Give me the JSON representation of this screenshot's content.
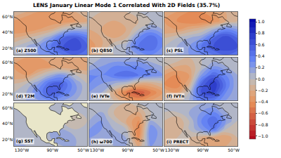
{
  "chart_data": {
    "type": "contour",
    "title": "LENS January Linear Mode 1 Correlated With 2D Fields (35.7%)",
    "x": [
      -140,
      -124,
      -108,
      -92,
      -76,
      -60,
      -45
    ],
    "y": [
      12,
      22,
      33,
      44,
      55,
      66
    ],
    "xlim": [
      -140,
      -45
    ],
    "ylim": [
      12,
      66
    ],
    "xticks": [
      {
        "value": -130,
        "label": "130°W"
      },
      {
        "value": -90,
        "label": "90°W"
      },
      {
        "value": -50,
        "label": "50°W"
      }
    ],
    "yticks": [
      {
        "value": 20,
        "label": "20°N"
      },
      {
        "value": 40,
        "label": "40°N"
      },
      {
        "value": 60,
        "label": "60°N"
      }
    ],
    "colorbar": {
      "range": [
        -1,
        1
      ],
      "ticks": [
        {
          "value": -1,
          "label": "−1.0"
        },
        {
          "value": -0.8,
          "label": "−0.8"
        },
        {
          "value": -0.6,
          "label": "−0.6"
        },
        {
          "value": -0.4,
          "label": "−0.4"
        },
        {
          "value": -0.2,
          "label": "−0.2"
        },
        {
          "value": 0,
          "label": "0.0"
        },
        {
          "value": 0.2,
          "label": "0.2"
        },
        {
          "value": 0.4,
          "label": "0.4"
        },
        {
          "value": 0.6,
          "label": "0.6"
        },
        {
          "value": 0.8,
          "label": "0.8"
        },
        {
          "value": 1,
          "label": "1.0"
        }
      ]
    },
    "panels": [
      {
        "title": "(a) Z500",
        "values": [
          [
            0.0,
            0.1,
            0.2,
            0.3,
            0.4,
            0.5,
            0.4
          ],
          [
            0.0,
            0.1,
            0.2,
            0.4,
            0.6,
            0.7,
            0.5
          ],
          [
            -0.2,
            -0.1,
            0.0,
            0.2,
            0.5,
            0.6,
            0.4
          ],
          [
            -0.4,
            -0.4,
            -0.3,
            -0.2,
            0.0,
            0.1,
            0.1
          ],
          [
            -0.3,
            -0.4,
            -0.4,
            -0.4,
            -0.4,
            -0.3,
            -0.2
          ],
          [
            -0.1,
            -0.2,
            -0.3,
            -0.3,
            -0.3,
            -0.2,
            -0.1
          ]
        ]
      },
      {
        "title": "(b) Q850",
        "values": [
          [
            -0.2,
            -0.1,
            0.0,
            0.1,
            0.2,
            0.3,
            0.2
          ],
          [
            -0.4,
            -0.2,
            0.0,
            0.1,
            0.4,
            0.5,
            0.3
          ],
          [
            -0.3,
            -0.2,
            -0.2,
            -0.1,
            0.3,
            0.5,
            0.3
          ],
          [
            -0.2,
            -0.2,
            -0.3,
            -0.2,
            0.0,
            0.2,
            0.1
          ],
          [
            -0.1,
            -0.2,
            -0.2,
            -0.2,
            -0.1,
            0.0,
            0.0
          ],
          [
            0.0,
            -0.1,
            -0.1,
            -0.1,
            0.0,
            0.0,
            0.0
          ]
        ]
      },
      {
        "title": "(c) PSL",
        "values": [
          [
            0.0,
            0.1,
            0.2,
            0.3,
            0.4,
            0.5,
            0.4
          ],
          [
            0.0,
            0.1,
            0.2,
            0.4,
            0.6,
            0.7,
            0.6
          ],
          [
            -0.1,
            0.0,
            0.1,
            0.2,
            0.5,
            0.7,
            0.5
          ],
          [
            -0.3,
            -0.3,
            -0.2,
            -0.1,
            0.1,
            0.3,
            0.2
          ],
          [
            -0.3,
            -0.4,
            -0.5,
            -0.5,
            -0.4,
            -0.2,
            -0.1
          ],
          [
            -0.2,
            -0.3,
            -0.4,
            -0.4,
            -0.3,
            -0.2,
            -0.1
          ]
        ]
      },
      {
        "title": "(d) T2M",
        "values": [
          [
            0.0,
            0.1,
            0.2,
            0.3,
            0.2,
            0.1,
            0.0
          ],
          [
            0.0,
            0.1,
            0.3,
            0.6,
            0.4,
            0.2,
            0.0
          ],
          [
            -0.1,
            0.0,
            0.2,
            0.5,
            0.5,
            0.2,
            0.0
          ],
          [
            -0.3,
            -0.3,
            -0.1,
            0.1,
            0.2,
            0.0,
            -0.1
          ],
          [
            -0.3,
            -0.4,
            -0.4,
            -0.3,
            -0.3,
            -0.3,
            -0.3
          ],
          [
            -0.2,
            -0.3,
            -0.3,
            -0.3,
            -0.3,
            -0.2,
            -0.2
          ]
        ]
      },
      {
        "title": "(e) IVTe",
        "values": [
          [
            0.1,
            0.0,
            -0.1,
            -0.3,
            -0.4,
            -0.3,
            -0.2
          ],
          [
            0.2,
            0.1,
            -0.2,
            -0.5,
            -0.7,
            -0.5,
            -0.3
          ],
          [
            0.3,
            0.2,
            0.1,
            0.0,
            -0.2,
            -0.2,
            -0.1
          ],
          [
            0.3,
            0.3,
            0.4,
            0.5,
            0.4,
            0.3,
            0.2
          ],
          [
            0.1,
            0.2,
            0.3,
            0.3,
            0.3,
            0.2,
            0.1
          ],
          [
            0.0,
            0.1,
            0.1,
            0.1,
            0.1,
            0.0,
            0.0
          ]
        ]
      },
      {
        "title": "(f) IVTn",
        "values": [
          [
            0.0,
            -0.1,
            0.1,
            0.4,
            0.4,
            0.2,
            0.1
          ],
          [
            -0.2,
            -0.3,
            0.0,
            0.6,
            0.7,
            0.3,
            0.1
          ],
          [
            -0.4,
            -0.5,
            -0.2,
            0.5,
            0.8,
            0.4,
            0.1
          ],
          [
            -0.3,
            -0.4,
            -0.3,
            0.2,
            0.5,
            0.3,
            0.1
          ],
          [
            -0.1,
            -0.2,
            -0.2,
            0.0,
            0.2,
            0.1,
            0.0
          ],
          [
            0.0,
            0.0,
            -0.1,
            0.0,
            0.0,
            0.0,
            0.0
          ]
        ]
      },
      {
        "title": "(g) SST",
        "values": [
          [
            0.1,
            0.1,
            0.0,
            0.0,
            0.1,
            0.1,
            0.0
          ],
          [
            0.1,
            0.0,
            0.0,
            0.1,
            0.2,
            0.1,
            0.0
          ],
          [
            0.0,
            0.0,
            0.0,
            0.1,
            0.1,
            0.0,
            0.0
          ],
          [
            0.0,
            0.0,
            0.0,
            0.0,
            0.0,
            -0.1,
            0.0
          ],
          [
            0.0,
            0.0,
            0.0,
            0.0,
            0.0,
            0.0,
            0.0
          ],
          [
            0.0,
            0.0,
            0.0,
            0.0,
            0.0,
            0.0,
            0.0
          ]
        ]
      },
      {
        "title": "(h) ω700",
        "values": [
          [
            0.1,
            0.0,
            0.1,
            0.1,
            -0.2,
            0.2,
            0.1
          ],
          [
            0.2,
            0.1,
            0.2,
            0.1,
            -0.4,
            0.3,
            0.1
          ],
          [
            0.2,
            0.2,
            0.1,
            0.0,
            -0.5,
            0.3,
            0.1
          ],
          [
            0.1,
            0.2,
            0.0,
            -0.2,
            -0.4,
            0.1,
            0.0
          ],
          [
            0.0,
            0.1,
            -0.1,
            -0.2,
            -0.2,
            0.0,
            0.0
          ],
          [
            0.0,
            0.0,
            0.0,
            -0.1,
            0.0,
            0.0,
            0.0
          ]
        ]
      },
      {
        "title": "(i) PRECT",
        "values": [
          [
            -0.1,
            -0.1,
            -0.2,
            -0.2,
            -0.3,
            -0.2,
            -0.1
          ],
          [
            -0.2,
            -0.1,
            -0.1,
            -0.2,
            -0.3,
            -0.3,
            -0.1
          ],
          [
            -0.2,
            -0.2,
            0.0,
            0.2,
            0.4,
            0.0,
            -0.1
          ],
          [
            -0.1,
            -0.2,
            0.0,
            0.3,
            0.5,
            0.2,
            0.0
          ],
          [
            0.0,
            0.0,
            0.1,
            0.2,
            0.3,
            0.1,
            0.0
          ],
          [
            0.0,
            0.0,
            0.0,
            0.1,
            0.1,
            0.0,
            0.0
          ]
        ]
      }
    ]
  }
}
